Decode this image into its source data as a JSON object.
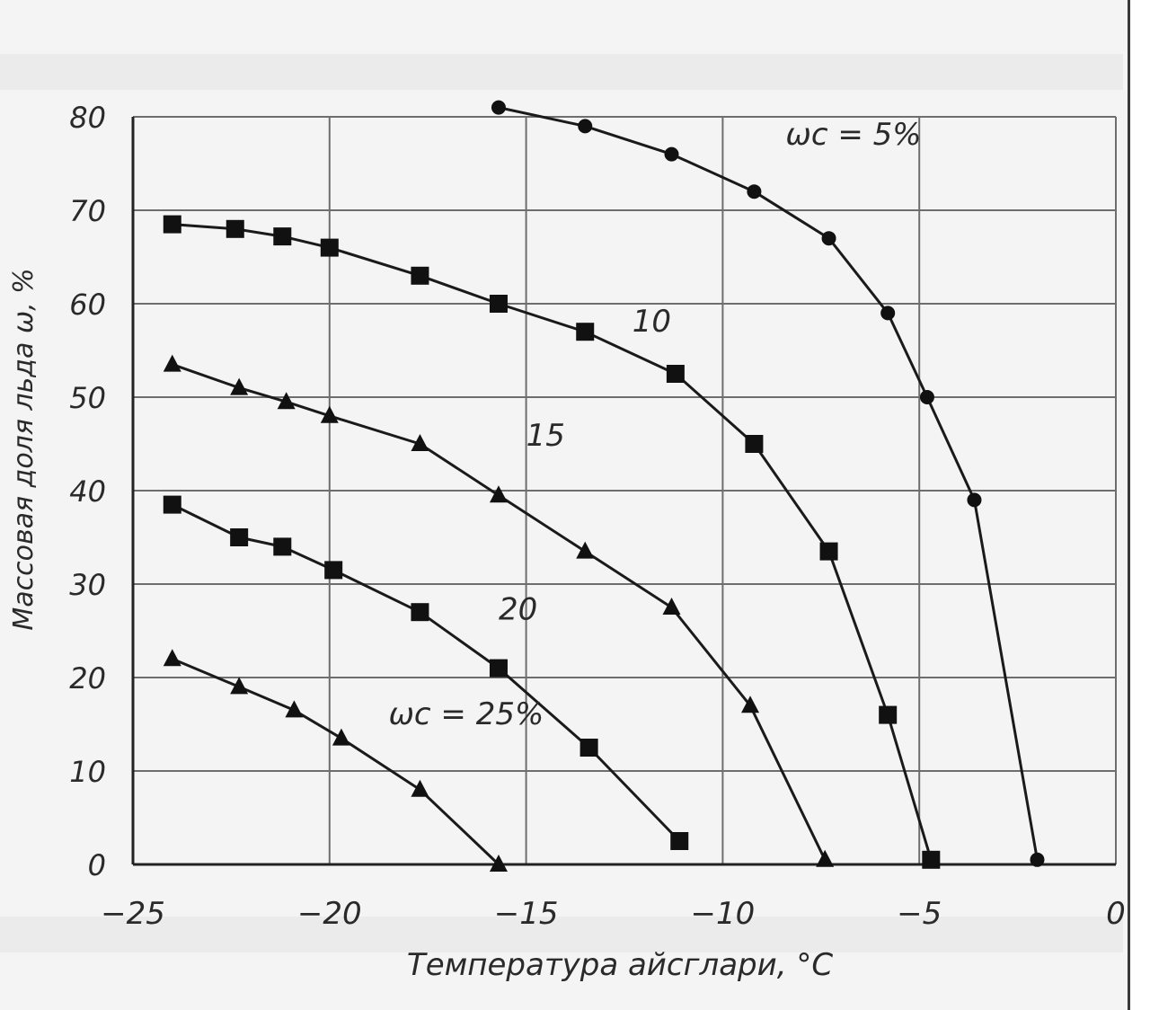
{
  "chart_data": {
    "type": "line",
    "xlabel": "Температура айсглари, °С",
    "ylabel": "Массовая доля льда ω, %",
    "xlim": [
      -25,
      0
    ],
    "ylim": [
      0,
      80
    ],
    "grid": true,
    "x_ticks": [
      "−25",
      "−20",
      "−15",
      "−10",
      "−5",
      "0"
    ],
    "y_ticks": [
      "0",
      "10",
      "20",
      "30",
      "40",
      "50",
      "60",
      "70",
      "80"
    ],
    "series": [
      {
        "name": "ωс = 5%",
        "marker": "circle",
        "label_pos": [
          -8.4,
          77
        ],
        "points": [
          [
            -15.7,
            81
          ],
          [
            -13.5,
            79
          ],
          [
            -11.3,
            76
          ],
          [
            -9.2,
            72
          ],
          [
            -7.3,
            67
          ],
          [
            -5.8,
            59
          ],
          [
            -4.8,
            50
          ],
          [
            -3.6,
            39
          ],
          [
            -2.0,
            0.5
          ]
        ]
      },
      {
        "name": "10",
        "marker": "square",
        "label_pos": [
          -12.3,
          57
        ],
        "points": [
          [
            -24.0,
            68.5
          ],
          [
            -22.4,
            68
          ],
          [
            -21.2,
            67.2
          ],
          [
            -20.0,
            66
          ],
          [
            -17.7,
            63
          ],
          [
            -15.7,
            60
          ],
          [
            -13.5,
            57
          ],
          [
            -11.2,
            52.5
          ],
          [
            -9.2,
            45
          ],
          [
            -7.3,
            33.5
          ],
          [
            -5.8,
            16
          ],
          [
            -4.7,
            0.5
          ]
        ]
      },
      {
        "name": "15",
        "marker": "triangle",
        "label_pos": [
          -15.0,
          44.8
        ],
        "points": [
          [
            -24.0,
            53.5
          ],
          [
            -22.3,
            51
          ],
          [
            -21.1,
            49.5
          ],
          [
            -20.0,
            48
          ],
          [
            -17.7,
            45
          ],
          [
            -15.7,
            39.5
          ],
          [
            -13.5,
            33.5
          ],
          [
            -11.3,
            27.5
          ],
          [
            -9.3,
            17
          ],
          [
            -7.4,
            0.5
          ]
        ]
      },
      {
        "name": "20",
        "marker": "square",
        "label_pos": [
          -15.7,
          26.2
        ],
        "points": [
          [
            -24.0,
            38.5
          ],
          [
            -22.3,
            35
          ],
          [
            -21.2,
            34
          ],
          [
            -19.9,
            31.5
          ],
          [
            -17.7,
            27
          ],
          [
            -15.7,
            21
          ],
          [
            -13.4,
            12.5
          ],
          [
            -11.1,
            2.5
          ]
        ]
      },
      {
        "name": "ωс = 25%",
        "marker": "triangle",
        "label_pos": [
          -18.5,
          15
        ],
        "points": [
          [
            -24.0,
            22
          ],
          [
            -22.3,
            19
          ],
          [
            -20.9,
            16.5
          ],
          [
            -19.7,
            13.5
          ],
          [
            -17.7,
            8
          ],
          [
            -15.7,
            0
          ]
        ]
      }
    ]
  }
}
